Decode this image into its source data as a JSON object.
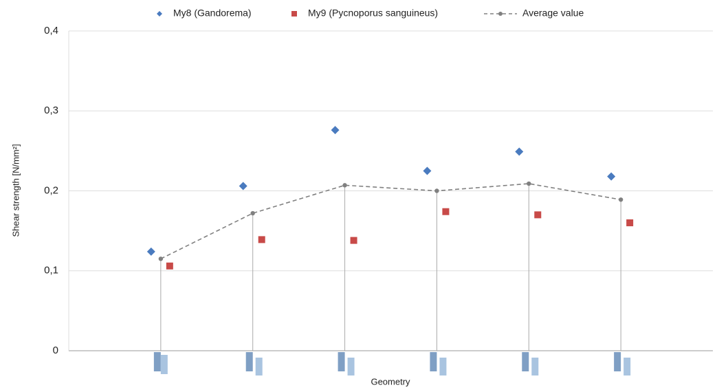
{
  "chart_data": {
    "type": "scatter-line",
    "x_label": "Geometry",
    "y_label": "Shear strength  [N/mm²]",
    "categories": [
      null,
      null,
      null,
      null,
      null,
      null
    ],
    "series": [
      {
        "name": "My8 (Gandorema)",
        "color": "#4a7bbf",
        "marker": "diamond",
        "values": [
          0.124,
          0.206,
          0.276,
          0.225,
          0.249,
          0.218
        ]
      },
      {
        "name": "My9 (Pycnoporus sanguineus)",
        "color": "#c84a48",
        "marker": "square",
        "values": [
          0.106,
          0.139,
          0.138,
          0.174,
          0.17,
          0.16
        ]
      },
      {
        "name": "Average value",
        "color": "#808080",
        "marker": "line",
        "values": [
          0.115,
          0.172,
          0.207,
          0.2,
          0.209,
          0.189
        ]
      }
    ],
    "ylim": [
      0,
      0.4
    ],
    "yticks": [
      0,
      {
        "value": 0.1,
        "label": "0,1"
      },
      {
        "value": 0.2,
        "label": "0,2"
      },
      {
        "value": 0.3,
        "label": "0,3"
      },
      {
        "value": 0.4,
        "label": "0,4"
      }
    ],
    "grid": true
  }
}
